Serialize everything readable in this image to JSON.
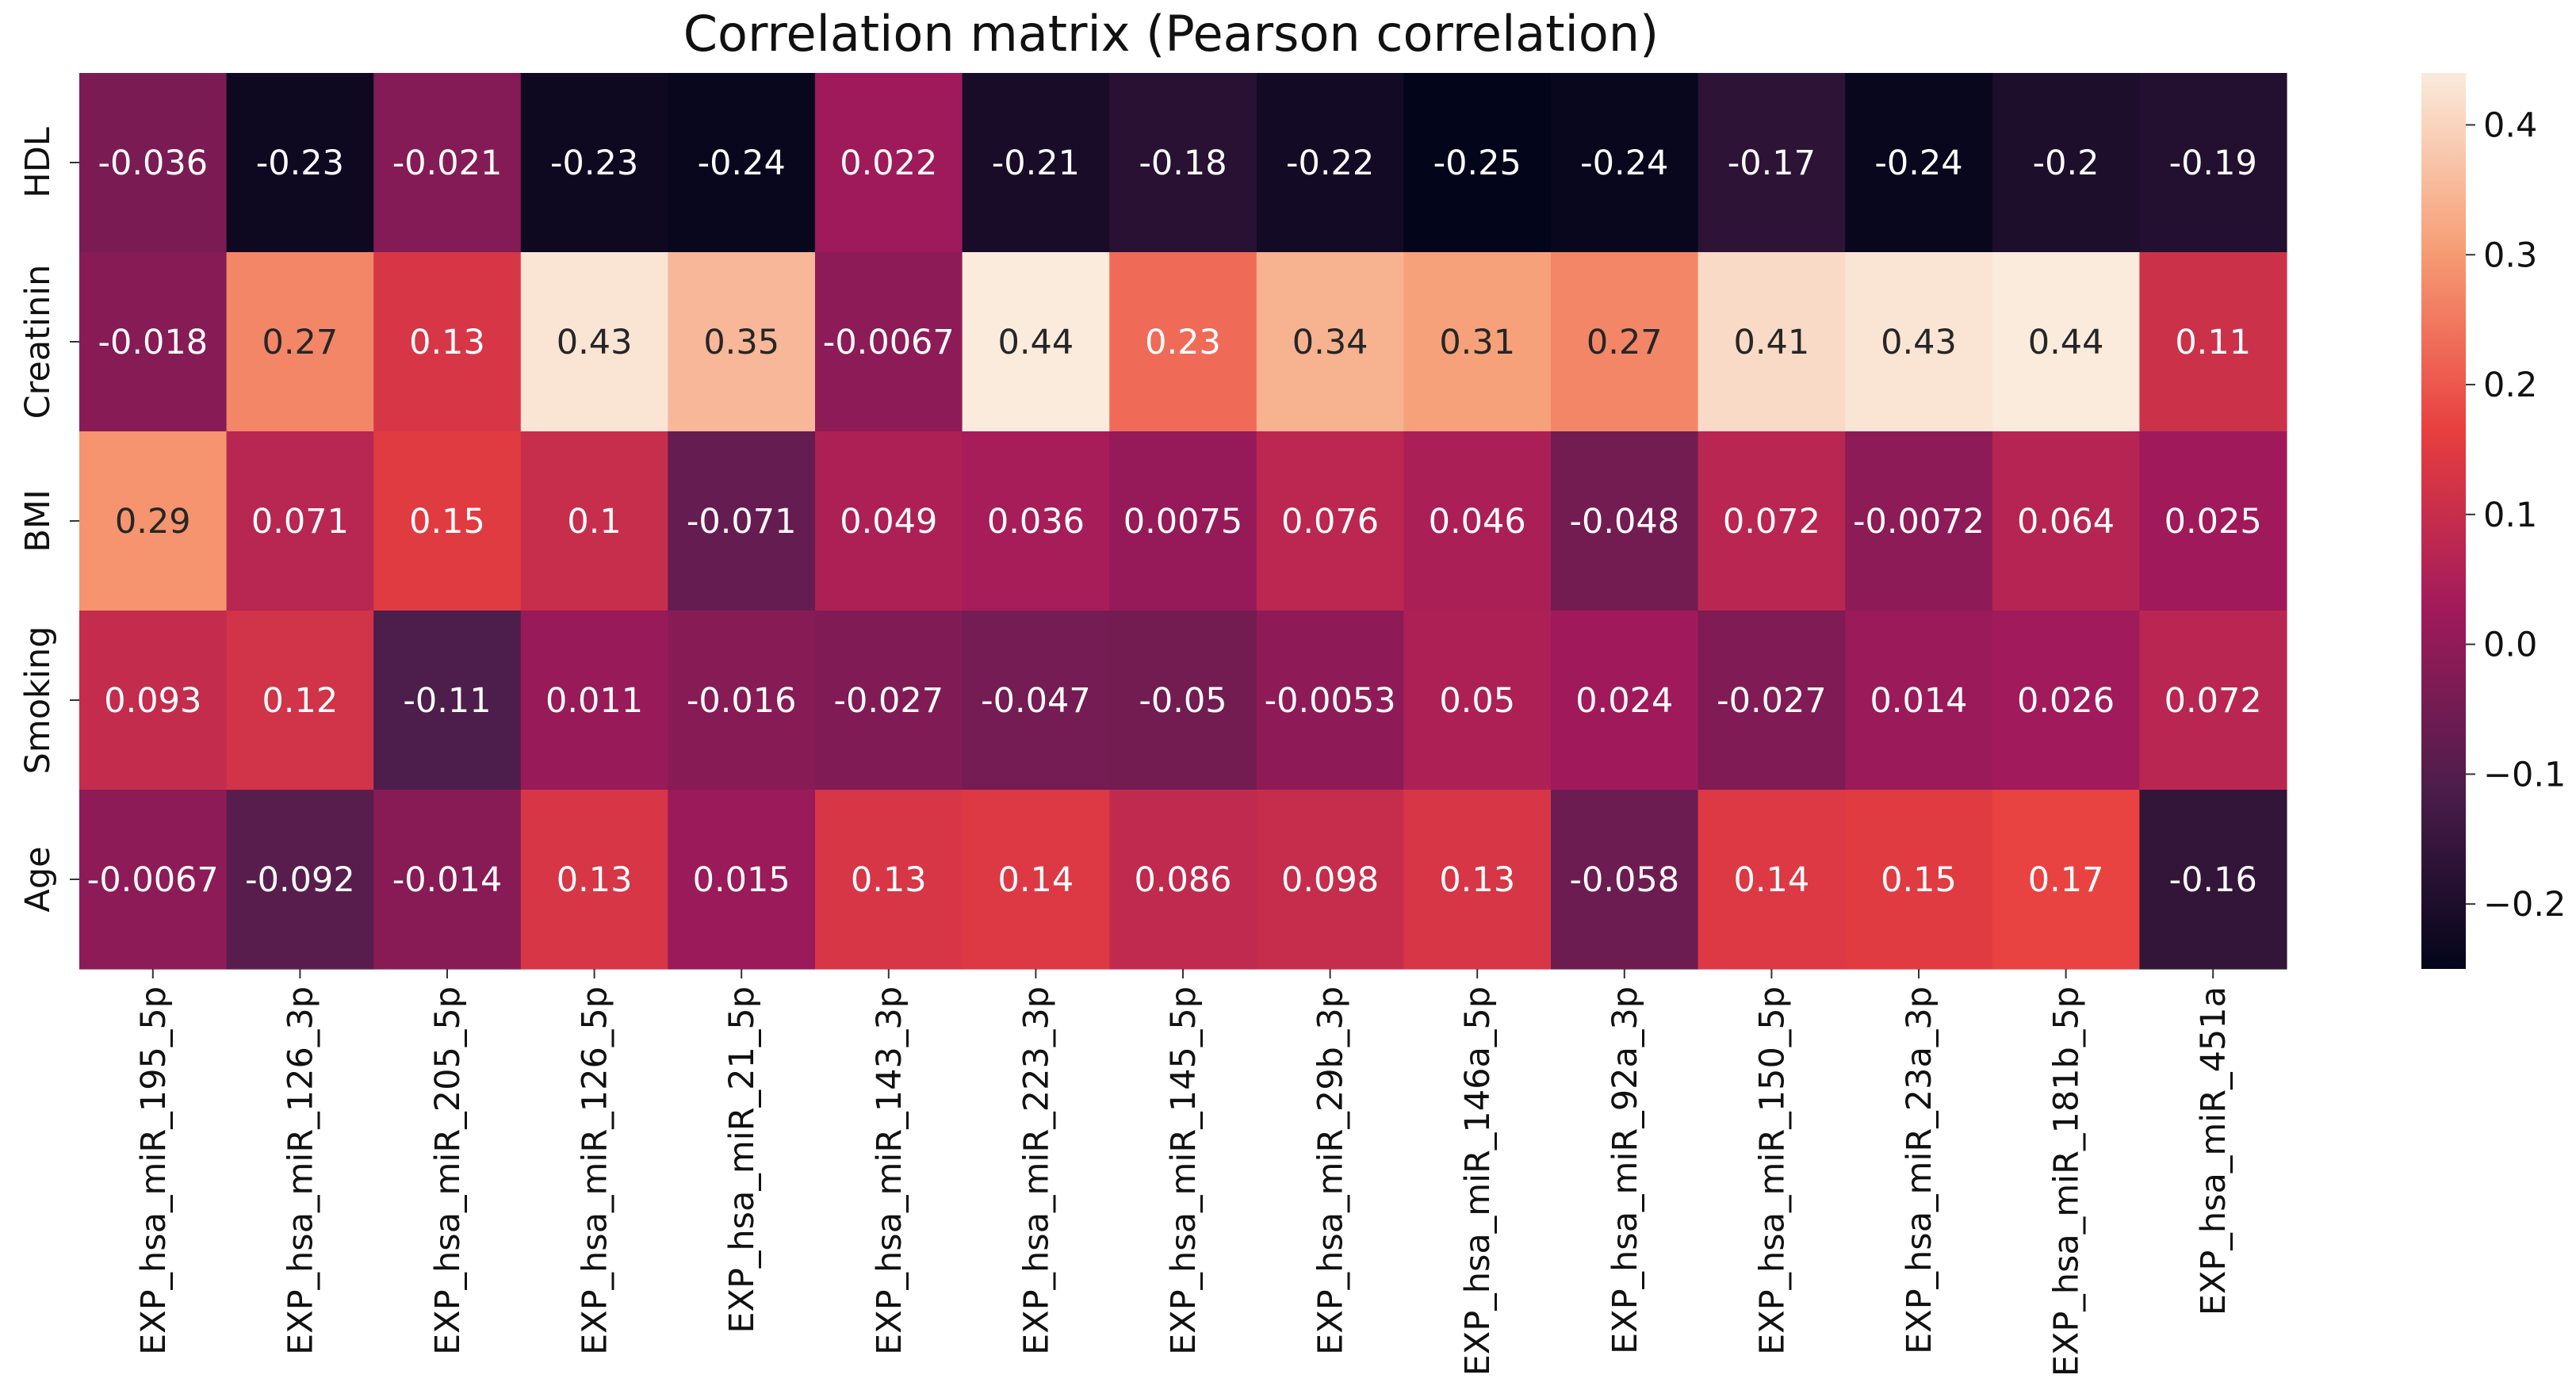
{
  "chart_data": {
    "type": "heatmap",
    "title": "Correlation matrix (Pearson correlation)",
    "rows": [
      "HDL",
      "Creatinin",
      "BMI",
      "Smoking",
      "Age"
    ],
    "columns": [
      "EXP_hsa_miR_195_5p",
      "EXP_hsa_miR_126_3p",
      "EXP_hsa_miR_205_5p",
      "EXP_hsa_miR_126_5p",
      "EXP_hsa_miR_21_5p",
      "EXP_hsa_miR_143_3p",
      "EXP_hsa_miR_223_3p",
      "EXP_hsa_miR_145_5p",
      "EXP_hsa_miR_29b_3p",
      "EXP_hsa_miR_146a_5p",
      "EXP_hsa_miR_92a_3p",
      "EXP_hsa_miR_150_5p",
      "EXP_hsa_miR_23a_3p",
      "EXP_hsa_miR_181b_5p",
      "EXP_hsa_miR_451a"
    ],
    "values": [
      [
        -0.036,
        -0.23,
        -0.021,
        -0.23,
        -0.24,
        0.022,
        -0.21,
        -0.18,
        -0.22,
        -0.25,
        -0.24,
        -0.17,
        -0.24,
        -0.2,
        -0.19
      ],
      [
        -0.018,
        0.27,
        0.13,
        0.43,
        0.35,
        -0.0067,
        0.44,
        0.23,
        0.34,
        0.31,
        0.27,
        0.41,
        0.43,
        0.44,
        0.11
      ],
      [
        0.29,
        0.071,
        0.15,
        0.1,
        -0.071,
        0.049,
        0.036,
        0.0075,
        0.076,
        0.046,
        -0.048,
        0.072,
        -0.0072,
        0.064,
        0.025
      ],
      [
        0.093,
        0.12,
        -0.11,
        0.011,
        -0.016,
        -0.027,
        -0.047,
        -0.05,
        -0.0053,
        0.05,
        0.024,
        -0.027,
        0.014,
        0.026,
        0.072
      ],
      [
        -0.0067,
        -0.092,
        -0.014,
        0.13,
        0.015,
        0.13,
        0.14,
        0.086,
        0.098,
        0.13,
        -0.058,
        0.14,
        0.15,
        0.17,
        -0.16
      ]
    ],
    "value_labels": [
      [
        "-0.036",
        "-0.23",
        "-0.021",
        "-0.23",
        "-0.24",
        "0.022",
        "-0.21",
        "-0.18",
        "-0.22",
        "-0.25",
        "-0.24",
        "-0.17",
        "-0.24",
        "-0.2",
        "-0.19"
      ],
      [
        "-0.018",
        "0.27",
        "0.13",
        "0.43",
        "0.35",
        "-0.0067",
        "0.44",
        "0.23",
        "0.34",
        "0.31",
        "0.27",
        "0.41",
        "0.43",
        "0.44",
        "0.11"
      ],
      [
        "0.29",
        "0.071",
        "0.15",
        "0.1",
        "-0.071",
        "0.049",
        "0.036",
        "0.0075",
        "0.076",
        "0.046",
        "-0.048",
        "0.072",
        "-0.0072",
        "0.064",
        "0.025"
      ],
      [
        "0.093",
        "0.12",
        "-0.11",
        "0.011",
        "-0.016",
        "-0.027",
        "-0.047",
        "-0.05",
        "-0.0053",
        "0.05",
        "0.024",
        "-0.027",
        "0.014",
        "0.026",
        "0.072"
      ],
      [
        "-0.0067",
        "-0.092",
        "-0.014",
        "0.13",
        "0.015",
        "0.13",
        "0.14",
        "0.086",
        "0.098",
        "0.13",
        "-0.058",
        "0.14",
        "0.15",
        "0.17",
        "-0.16"
      ]
    ],
    "colorbar": {
      "min": -0.25,
      "max": 0.44,
      "ticks": [
        -0.2,
        -0.1,
        0.0,
        0.1,
        0.2,
        0.3,
        0.4
      ],
      "tick_labels": [
        "−0.2",
        "−0.1",
        "0.0",
        "0.1",
        "0.2",
        "0.3",
        "0.4"
      ]
    },
    "colormap": [
      "#03051a",
      "#4c1d4b",
      "#a11a5b",
      "#e83f3f",
      "#f69c73",
      "#faebdd"
    ]
  }
}
